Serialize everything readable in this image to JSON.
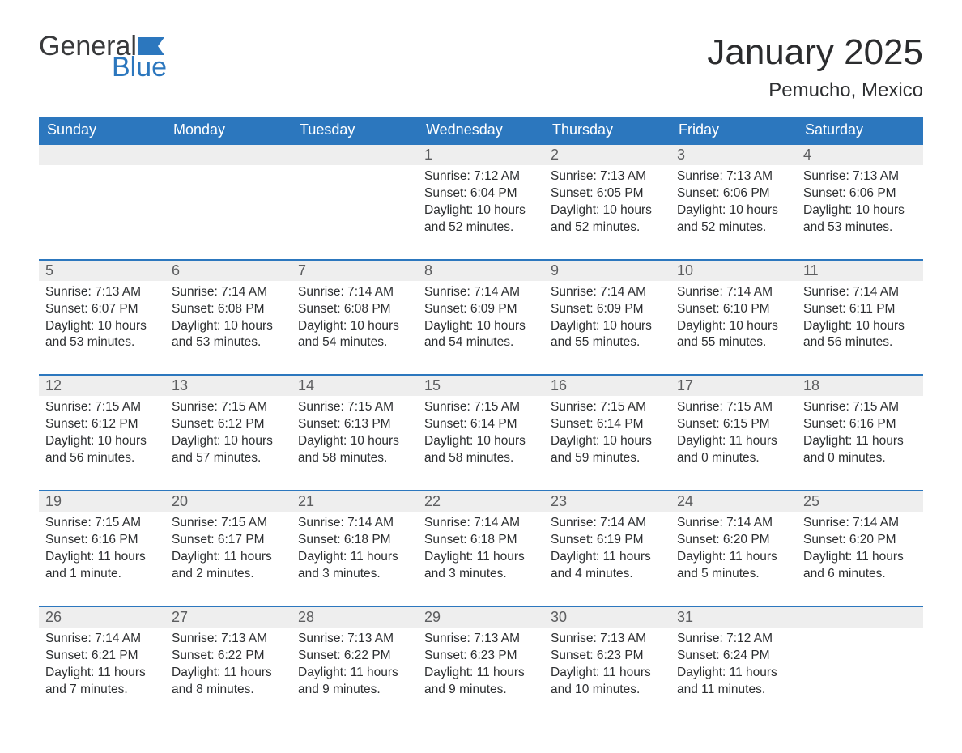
{
  "logo": {
    "general": "General",
    "blue": "Blue",
    "flag_color": "#2c77be"
  },
  "title": "January 2025",
  "location": "Pemucho, Mexico",
  "columns": [
    "Sunday",
    "Monday",
    "Tuesday",
    "Wednesday",
    "Thursday",
    "Friday",
    "Saturday"
  ],
  "header_bg": "#2c77be",
  "header_fg": "#ffffff",
  "daynum_bg": "#eeeeee",
  "daynum_fg": "#5c5d5f",
  "row_border": "#2c77be",
  "text_color": "#2d2f31",
  "weeks": [
    [
      null,
      null,
      null,
      {
        "n": "1",
        "sr": "7:12 AM",
        "ss": "6:04 PM",
        "d1": "Daylight: 10 hours",
        "d2": "and 52 minutes."
      },
      {
        "n": "2",
        "sr": "7:13 AM",
        "ss": "6:05 PM",
        "d1": "Daylight: 10 hours",
        "d2": "and 52 minutes."
      },
      {
        "n": "3",
        "sr": "7:13 AM",
        "ss": "6:06 PM",
        "d1": "Daylight: 10 hours",
        "d2": "and 52 minutes."
      },
      {
        "n": "4",
        "sr": "7:13 AM",
        "ss": "6:06 PM",
        "d1": "Daylight: 10 hours",
        "d2": "and 53 minutes."
      }
    ],
    [
      {
        "n": "5",
        "sr": "7:13 AM",
        "ss": "6:07 PM",
        "d1": "Daylight: 10 hours",
        "d2": "and 53 minutes."
      },
      {
        "n": "6",
        "sr": "7:14 AM",
        "ss": "6:08 PM",
        "d1": "Daylight: 10 hours",
        "d2": "and 53 minutes."
      },
      {
        "n": "7",
        "sr": "7:14 AM",
        "ss": "6:08 PM",
        "d1": "Daylight: 10 hours",
        "d2": "and 54 minutes."
      },
      {
        "n": "8",
        "sr": "7:14 AM",
        "ss": "6:09 PM",
        "d1": "Daylight: 10 hours",
        "d2": "and 54 minutes."
      },
      {
        "n": "9",
        "sr": "7:14 AM",
        "ss": "6:09 PM",
        "d1": "Daylight: 10 hours",
        "d2": "and 55 minutes."
      },
      {
        "n": "10",
        "sr": "7:14 AM",
        "ss": "6:10 PM",
        "d1": "Daylight: 10 hours",
        "d2": "and 55 minutes."
      },
      {
        "n": "11",
        "sr": "7:14 AM",
        "ss": "6:11 PM",
        "d1": "Daylight: 10 hours",
        "d2": "and 56 minutes."
      }
    ],
    [
      {
        "n": "12",
        "sr": "7:15 AM",
        "ss": "6:12 PM",
        "d1": "Daylight: 10 hours",
        "d2": "and 56 minutes."
      },
      {
        "n": "13",
        "sr": "7:15 AM",
        "ss": "6:12 PM",
        "d1": "Daylight: 10 hours",
        "d2": "and 57 minutes."
      },
      {
        "n": "14",
        "sr": "7:15 AM",
        "ss": "6:13 PM",
        "d1": "Daylight: 10 hours",
        "d2": "and 58 minutes."
      },
      {
        "n": "15",
        "sr": "7:15 AM",
        "ss": "6:14 PM",
        "d1": "Daylight: 10 hours",
        "d2": "and 58 minutes."
      },
      {
        "n": "16",
        "sr": "7:15 AM",
        "ss": "6:14 PM",
        "d1": "Daylight: 10 hours",
        "d2": "and 59 minutes."
      },
      {
        "n": "17",
        "sr": "7:15 AM",
        "ss": "6:15 PM",
        "d1": "Daylight: 11 hours",
        "d2": "and 0 minutes."
      },
      {
        "n": "18",
        "sr": "7:15 AM",
        "ss": "6:16 PM",
        "d1": "Daylight: 11 hours",
        "d2": "and 0 minutes."
      }
    ],
    [
      {
        "n": "19",
        "sr": "7:15 AM",
        "ss": "6:16 PM",
        "d1": "Daylight: 11 hours",
        "d2": "and 1 minute."
      },
      {
        "n": "20",
        "sr": "7:15 AM",
        "ss": "6:17 PM",
        "d1": "Daylight: 11 hours",
        "d2": "and 2 minutes."
      },
      {
        "n": "21",
        "sr": "7:14 AM",
        "ss": "6:18 PM",
        "d1": "Daylight: 11 hours",
        "d2": "and 3 minutes."
      },
      {
        "n": "22",
        "sr": "7:14 AM",
        "ss": "6:18 PM",
        "d1": "Daylight: 11 hours",
        "d2": "and 3 minutes."
      },
      {
        "n": "23",
        "sr": "7:14 AM",
        "ss": "6:19 PM",
        "d1": "Daylight: 11 hours",
        "d2": "and 4 minutes."
      },
      {
        "n": "24",
        "sr": "7:14 AM",
        "ss": "6:20 PM",
        "d1": "Daylight: 11 hours",
        "d2": "and 5 minutes."
      },
      {
        "n": "25",
        "sr": "7:14 AM",
        "ss": "6:20 PM",
        "d1": "Daylight: 11 hours",
        "d2": "and 6 minutes."
      }
    ],
    [
      {
        "n": "26",
        "sr": "7:14 AM",
        "ss": "6:21 PM",
        "d1": "Daylight: 11 hours",
        "d2": "and 7 minutes."
      },
      {
        "n": "27",
        "sr": "7:13 AM",
        "ss": "6:22 PM",
        "d1": "Daylight: 11 hours",
        "d2": "and 8 minutes."
      },
      {
        "n": "28",
        "sr": "7:13 AM",
        "ss": "6:22 PM",
        "d1": "Daylight: 11 hours",
        "d2": "and 9 minutes."
      },
      {
        "n": "29",
        "sr": "7:13 AM",
        "ss": "6:23 PM",
        "d1": "Daylight: 11 hours",
        "d2": "and 9 minutes."
      },
      {
        "n": "30",
        "sr": "7:13 AM",
        "ss": "6:23 PM",
        "d1": "Daylight: 11 hours",
        "d2": "and 10 minutes."
      },
      {
        "n": "31",
        "sr": "7:12 AM",
        "ss": "6:24 PM",
        "d1": "Daylight: 11 hours",
        "d2": "and 11 minutes."
      },
      null
    ]
  ]
}
